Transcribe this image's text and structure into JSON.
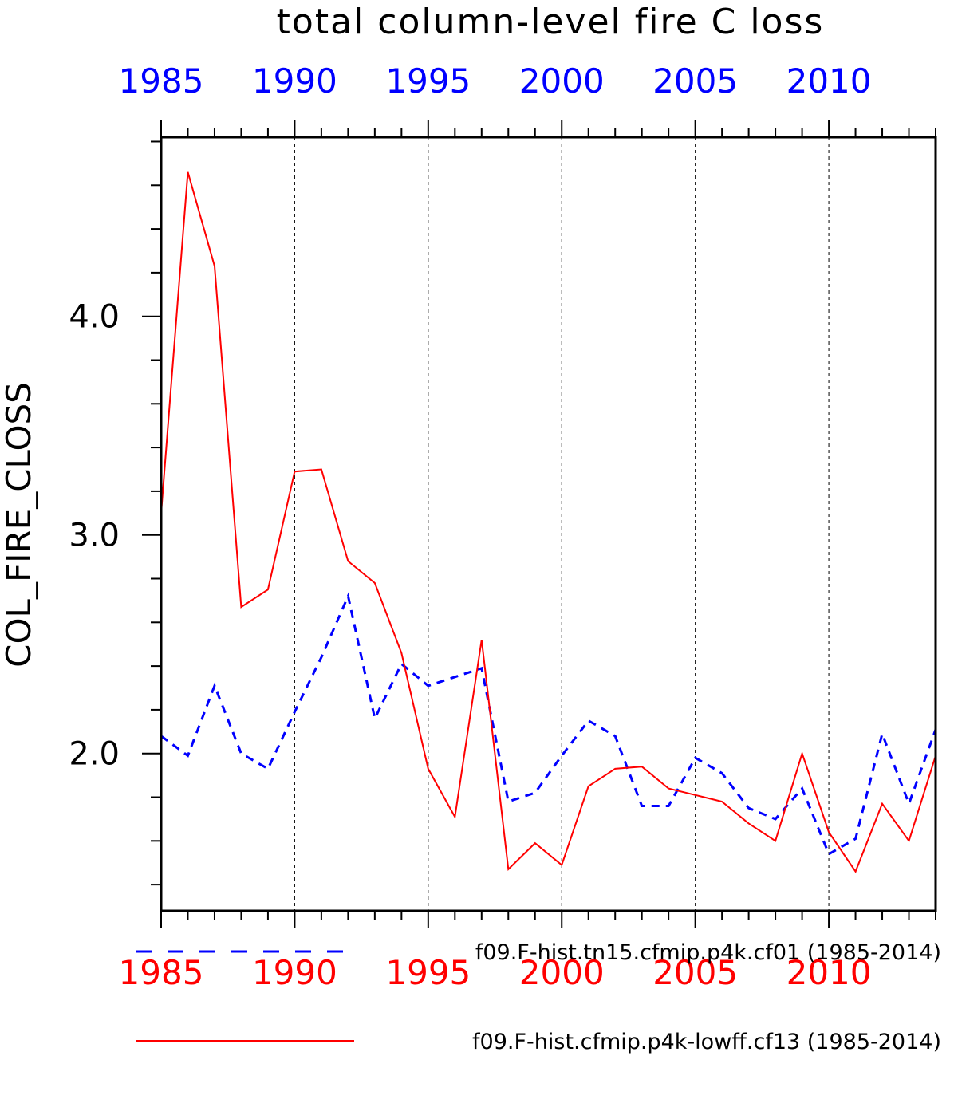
{
  "chart_data": {
    "type": "line",
    "title": "total column-level fire C loss",
    "ylabel": "COL_FIRE_CLOSS",
    "xlim": [
      1985,
      2014
    ],
    "ylim": [
      1.28,
      4.82
    ],
    "x_ticks": [
      "1985",
      "1990",
      "1995",
      "2000",
      "2005",
      "2010"
    ],
    "x_tick_values": [
      1985,
      1990,
      1995,
      2000,
      2005,
      2010
    ],
    "y_ticks": [
      "2.0",
      "3.0",
      "4.0"
    ],
    "y_tick_values": [
      2.0,
      3.0,
      4.0
    ],
    "top_axis_color": "#0000ff",
    "bottom_axis_color": "#ff0000",
    "grid": "vertical-dashed",
    "legend_position": "bottom",
    "x": [
      1985,
      1986,
      1987,
      1988,
      1989,
      1990,
      1991,
      1992,
      1993,
      1994,
      1995,
      1996,
      1997,
      1998,
      1999,
      2000,
      2001,
      2002,
      2003,
      2004,
      2005,
      2006,
      2007,
      2008,
      2009,
      2010,
      2011,
      2012,
      2013,
      2014
    ],
    "series": [
      {
        "name": "f09.F-hist.tn15.cfmip.p4k.cf01 (1985-2014)",
        "color": "#0000ff",
        "style": "dashed",
        "values": [
          2.08,
          1.99,
          2.31,
          2.0,
          1.93,
          2.19,
          2.44,
          2.72,
          2.16,
          2.41,
          2.31,
          2.35,
          2.39,
          1.78,
          1.82,
          1.99,
          2.15,
          2.08,
          1.76,
          1.76,
          1.98,
          1.91,
          1.75,
          1.7,
          1.84,
          1.54,
          1.61,
          2.09,
          1.77,
          2.11
        ]
      },
      {
        "name": "f09.F-hist.cfmip.p4k-lowff.cf13 (1985-2014)",
        "color": "#ff0000",
        "style": "solid",
        "values": [
          3.1,
          4.66,
          4.23,
          2.67,
          2.75,
          3.29,
          3.3,
          2.88,
          2.78,
          2.46,
          1.93,
          1.71,
          2.52,
          1.47,
          1.59,
          1.49,
          1.85,
          1.93,
          1.94,
          1.84,
          1.81,
          1.78,
          1.68,
          1.6,
          2.0,
          1.64,
          1.46,
          1.77,
          1.6,
          1.99
        ]
      }
    ]
  }
}
